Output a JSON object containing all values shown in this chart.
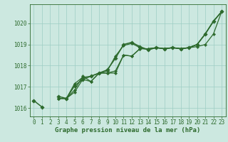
{
  "xlabel": "Graphe pression niveau de la mer (hPa)",
  "x": [
    0,
    1,
    2,
    3,
    4,
    5,
    6,
    7,
    8,
    9,
    10,
    11,
    12,
    13,
    14,
    15,
    16,
    17,
    18,
    19,
    20,
    21,
    22,
    23
  ],
  "series": [
    {
      "y": [
        1016.35,
        1016.05,
        null,
        1016.55,
        1016.45,
        1017.05,
        1017.35,
        1017.5,
        1017.65,
        1017.8,
        1018.35,
        1019.0,
        1019.1,
        1018.9,
        1018.75,
        1018.85,
        1018.8,
        1018.85,
        1018.8,
        1018.85,
        1019.0,
        1019.5,
        1020.1,
        1020.55
      ],
      "color": "#2d6a2d",
      "linewidth": 1.1,
      "marker": "D",
      "markersize": 2.8
    },
    {
      "y": [
        1016.35,
        null,
        null,
        1016.45,
        1016.45,
        1016.85,
        1017.5,
        1017.25,
        1017.65,
        1017.65,
        1017.75,
        1018.5,
        1018.45,
        1018.8,
        1018.8,
        1018.85,
        1018.8,
        1018.85,
        1018.8,
        1018.85,
        1019.0,
        1019.5,
        1020.1,
        1020.55
      ],
      "color": "#2d6a2d",
      "linewidth": 0.9,
      "marker": "D",
      "markersize": 2.2
    },
    {
      "y": [
        1016.35,
        null,
        null,
        1016.45,
        1016.45,
        1017.15,
        1017.45,
        1017.5,
        1017.65,
        1017.75,
        1018.45,
        1018.95,
        1019.05,
        1018.85,
        1018.75,
        1018.85,
        1018.8,
        1018.85,
        1018.8,
        1018.85,
        1018.9,
        1019.0,
        1019.5,
        1020.55
      ],
      "color": "#2d6a2d",
      "linewidth": 0.9,
      "marker": "D",
      "markersize": 2.2
    },
    {
      "y": [
        1016.35,
        null,
        null,
        1016.45,
        1016.45,
        1016.75,
        1017.35,
        1017.25,
        1017.65,
        1017.65,
        1017.65,
        1018.5,
        1018.45,
        1018.8,
        1018.8,
        1018.85,
        1018.8,
        1018.85,
        1018.8,
        1018.85,
        1019.0,
        1019.5,
        1020.1,
        1020.55
      ],
      "color": "#2d6a2d",
      "linewidth": 0.9,
      "marker": "D",
      "markersize": 2.2
    }
  ],
  "ylim": [
    1015.6,
    1020.9
  ],
  "xlim": [
    -0.5,
    23.5
  ],
  "yticks": [
    1016,
    1017,
    1018,
    1019,
    1020
  ],
  "xticks": [
    0,
    1,
    2,
    3,
    4,
    5,
    6,
    7,
    8,
    9,
    10,
    11,
    12,
    13,
    14,
    15,
    16,
    17,
    18,
    19,
    20,
    21,
    22,
    23
  ],
  "xtick_labels": [
    "0",
    "1",
    "2",
    "3",
    "4",
    "5",
    "6",
    "7",
    "8",
    "9",
    "10",
    "11",
    "12",
    "13",
    "14",
    "15",
    "16",
    "17",
    "18",
    "19",
    "20",
    "21",
    "22",
    "23"
  ],
  "bg_color": "#cce8e0",
  "grid_color": "#9ecdc4",
  "line_color": "#2d6a2d",
  "label_color": "#2d6a2d",
  "axis_color": "#2d6a2d",
  "tick_color": "#2d6a2d",
  "xlabel_fontsize": 6.5,
  "tick_fontsize": 5.5
}
